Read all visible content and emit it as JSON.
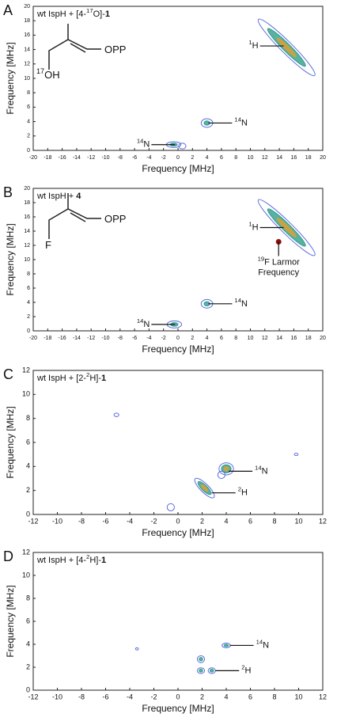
{
  "chart_data": [
    {
      "type": "contour",
      "panel": "A",
      "label": [
        {
          "text": "wt IspH + [4-"
        },
        {
          "text": "17",
          "sup": true
        },
        {
          "text": "O]-"
        },
        {
          "text": "1",
          "bold": true
        }
      ],
      "structure_labels": [
        [
          {
            "text": "17",
            "sup": true
          },
          {
            "text": "OH"
          }
        ],
        [
          {
            "text": "OPP"
          }
        ]
      ],
      "x_label": "Frequency [MHz]",
      "y_label": "Frequency [MHz]",
      "xlim": [
        -20,
        20
      ],
      "xticks": [
        -20,
        -18,
        -16,
        -14,
        -12,
        -10,
        -8,
        -6,
        -4,
        -2,
        0,
        2,
        4,
        6,
        8,
        10,
        12,
        14,
        16,
        18,
        20
      ],
      "ylim": [
        0,
        20
      ],
      "yticks": [
        0,
        2,
        4,
        6,
        8,
        10,
        12,
        14,
        16,
        18,
        20
      ],
      "contour_colors": [
        "#5a6be0",
        "#2f9e8a",
        "#e0a030"
      ],
      "peaks": [
        {
          "x": 15,
          "y": 14.3,
          "rx": 5.5,
          "ry": 0.8,
          "antidiagonal": true,
          "levels": 3
        },
        {
          "x": 4,
          "y": 3.8,
          "rx": 0.8,
          "ry": 0.6,
          "levels": 2
        },
        {
          "x": -0.6,
          "y": 0.8,
          "rx": 1,
          "ry": 0.4,
          "levels": 2
        },
        {
          "x": 0.6,
          "y": 0.6,
          "rx": 0.5,
          "ry": 0.4,
          "levels": 1
        }
      ],
      "annotations": [
        {
          "parts": [
            {
              "text": "1",
              "sup": true
            },
            {
              "text": "H"
            }
          ],
          "x": 14.6,
          "y": 14.5,
          "side": "left"
        },
        {
          "parts": [
            {
              "text": "14",
              "sup": true
            },
            {
              "text": "N"
            }
          ],
          "x": 4.2,
          "y": 3.8,
          "side": "right"
        },
        {
          "parts": [
            {
              "text": "14",
              "sup": true
            },
            {
              "text": "N"
            }
          ],
          "x": -0.4,
          "y": 0.8,
          "side": "left"
        }
      ]
    },
    {
      "type": "contour",
      "panel": "B",
      "label": [
        {
          "text": "wt IspH + "
        },
        {
          "text": "4",
          "bold": true
        }
      ],
      "structure_labels": [
        [
          {
            "text": "F"
          }
        ],
        [
          {
            "text": "OPP"
          }
        ]
      ],
      "x_label": "Frequency [MHz]",
      "y_label": "Frequency [MHz]",
      "xlim": [
        -20,
        20
      ],
      "xticks": [
        -20,
        -18,
        -16,
        -14,
        -12,
        -10,
        -8,
        -6,
        -4,
        -2,
        0,
        2,
        4,
        6,
        8,
        10,
        12,
        14,
        16,
        18,
        20
      ],
      "ylim": [
        0,
        20
      ],
      "yticks": [
        0,
        2,
        4,
        6,
        8,
        10,
        12,
        14,
        16,
        18,
        20
      ],
      "contour_colors": [
        "#5a6be0",
        "#2f9e8a",
        "#e0a030"
      ],
      "peaks": [
        {
          "x": 15,
          "y": 14.5,
          "rx": 5.5,
          "ry": 0.8,
          "antidiagonal": true,
          "levels": 3
        },
        {
          "x": 4,
          "y": 3.8,
          "rx": 0.8,
          "ry": 0.6,
          "levels": 2
        },
        {
          "x": -0.5,
          "y": 0.9,
          "rx": 1,
          "ry": 0.5,
          "levels": 2
        }
      ],
      "annotations": [
        {
          "parts": [
            {
              "text": "1",
              "sup": true
            },
            {
              "text": "H"
            }
          ],
          "x": 14.6,
          "y": 14.5,
          "side": "left"
        },
        {
          "parts": [
            {
              "text": "14",
              "sup": true
            },
            {
              "text": "N"
            }
          ],
          "x": 4.2,
          "y": 3.8,
          "side": "right"
        },
        {
          "parts": [
            {
              "text": "14",
              "sup": true
            },
            {
              "text": "N"
            }
          ],
          "x": -0.4,
          "y": 0.9,
          "side": "left"
        },
        {
          "parts": [
            {
              "text": "19",
              "sup": true
            },
            {
              "text": "F Larmor"
            }
          ],
          "parts2": [
            {
              "text": "Frequency"
            }
          ],
          "x": 13.9,
          "y": 12.5,
          "side": "below",
          "dot": "#8b1010"
        }
      ]
    },
    {
      "type": "contour",
      "panel": "C",
      "label": [
        {
          "text": "wt IspH + [2-"
        },
        {
          "text": "2",
          "sup": true
        },
        {
          "text": "H]-"
        },
        {
          "text": "1",
          "bold": true
        }
      ],
      "x_label": "Frequency [MHz]",
      "y_label": "Frequency [MHz]",
      "xlim": [
        -12,
        12
      ],
      "xticks": [
        -12,
        -10,
        -8,
        -6,
        -4,
        -2,
        0,
        2,
        4,
        6,
        8,
        10,
        12
      ],
      "ylim": [
        0,
        12
      ],
      "yticks": [
        0,
        2,
        4,
        6,
        8,
        10,
        12
      ],
      "contour_colors": [
        "#5a6be0",
        "#2f9e8a",
        "#e0a030"
      ],
      "peaks": [
        {
          "x": 2.2,
          "y": 2.2,
          "rx": 1.1,
          "ry": 0.35,
          "antidiagonal": true,
          "levels": 3
        },
        {
          "x": 4,
          "y": 3.8,
          "rx": 0.6,
          "ry": 0.5,
          "levels": 3
        },
        {
          "x": 3.6,
          "y": 3.3,
          "rx": 0.3,
          "ry": 0.3,
          "levels": 1
        },
        {
          "x": -0.6,
          "y": 0.6,
          "rx": 0.3,
          "ry": 0.3,
          "levels": 1
        },
        {
          "x": -5.1,
          "y": 8.3,
          "rx": 0.2,
          "ry": 0.15,
          "levels": 1
        },
        {
          "x": 9.8,
          "y": 5,
          "rx": 0.15,
          "ry": 0.1,
          "levels": 1
        }
      ],
      "annotations": [
        {
          "parts": [
            {
              "text": "14",
              "sup": true
            },
            {
              "text": "N"
            }
          ],
          "x": 4.2,
          "y": 3.6,
          "side": "right"
        },
        {
          "parts": [
            {
              "text": "2",
              "sup": true
            },
            {
              "text": "H"
            }
          ],
          "x": 2.8,
          "y": 1.8,
          "side": "right"
        }
      ]
    },
    {
      "type": "contour",
      "panel": "D",
      "label": [
        {
          "text": "wt IspH + [4-"
        },
        {
          "text": "2",
          "sup": true
        },
        {
          "text": "H]-"
        },
        {
          "text": "1",
          "bold": true
        }
      ],
      "x_label": "Frequency [MHz]",
      "y_label": "Frequency [MHz]",
      "xlim": [
        -12,
        12
      ],
      "xticks": [
        -12,
        -10,
        -8,
        -6,
        -4,
        -2,
        0,
        2,
        4,
        6,
        8,
        10,
        12
      ],
      "ylim": [
        0,
        12
      ],
      "yticks": [
        0,
        2,
        4,
        6,
        8,
        10,
        12
      ],
      "contour_colors": [
        "#5a6be0",
        "#2f9e8a",
        "#e0a030"
      ],
      "peaks": [
        {
          "x": 1.9,
          "y": 2.7,
          "rx": 0.3,
          "ry": 0.3,
          "levels": 2
        },
        {
          "x": 1.9,
          "y": 1.7,
          "rx": 0.3,
          "ry": 0.25,
          "levels": 2
        },
        {
          "x": 2.8,
          "y": 1.7,
          "rx": 0.3,
          "ry": 0.25,
          "levels": 2
        },
        {
          "x": 4,
          "y": 3.9,
          "rx": 0.35,
          "ry": 0.2,
          "levels": 2
        },
        {
          "x": -3.4,
          "y": 3.6,
          "rx": 0.12,
          "ry": 0.1,
          "levels": 1
        }
      ],
      "annotations": [
        {
          "parts": [
            {
              "text": "14",
              "sup": true
            },
            {
              "text": "N"
            }
          ],
          "x": 4.3,
          "y": 3.9,
          "side": "right"
        },
        {
          "parts": [
            {
              "text": "2",
              "sup": true
            },
            {
              "text": "H"
            }
          ],
          "x": 3.1,
          "y": 1.7,
          "side": "right"
        }
      ]
    }
  ]
}
